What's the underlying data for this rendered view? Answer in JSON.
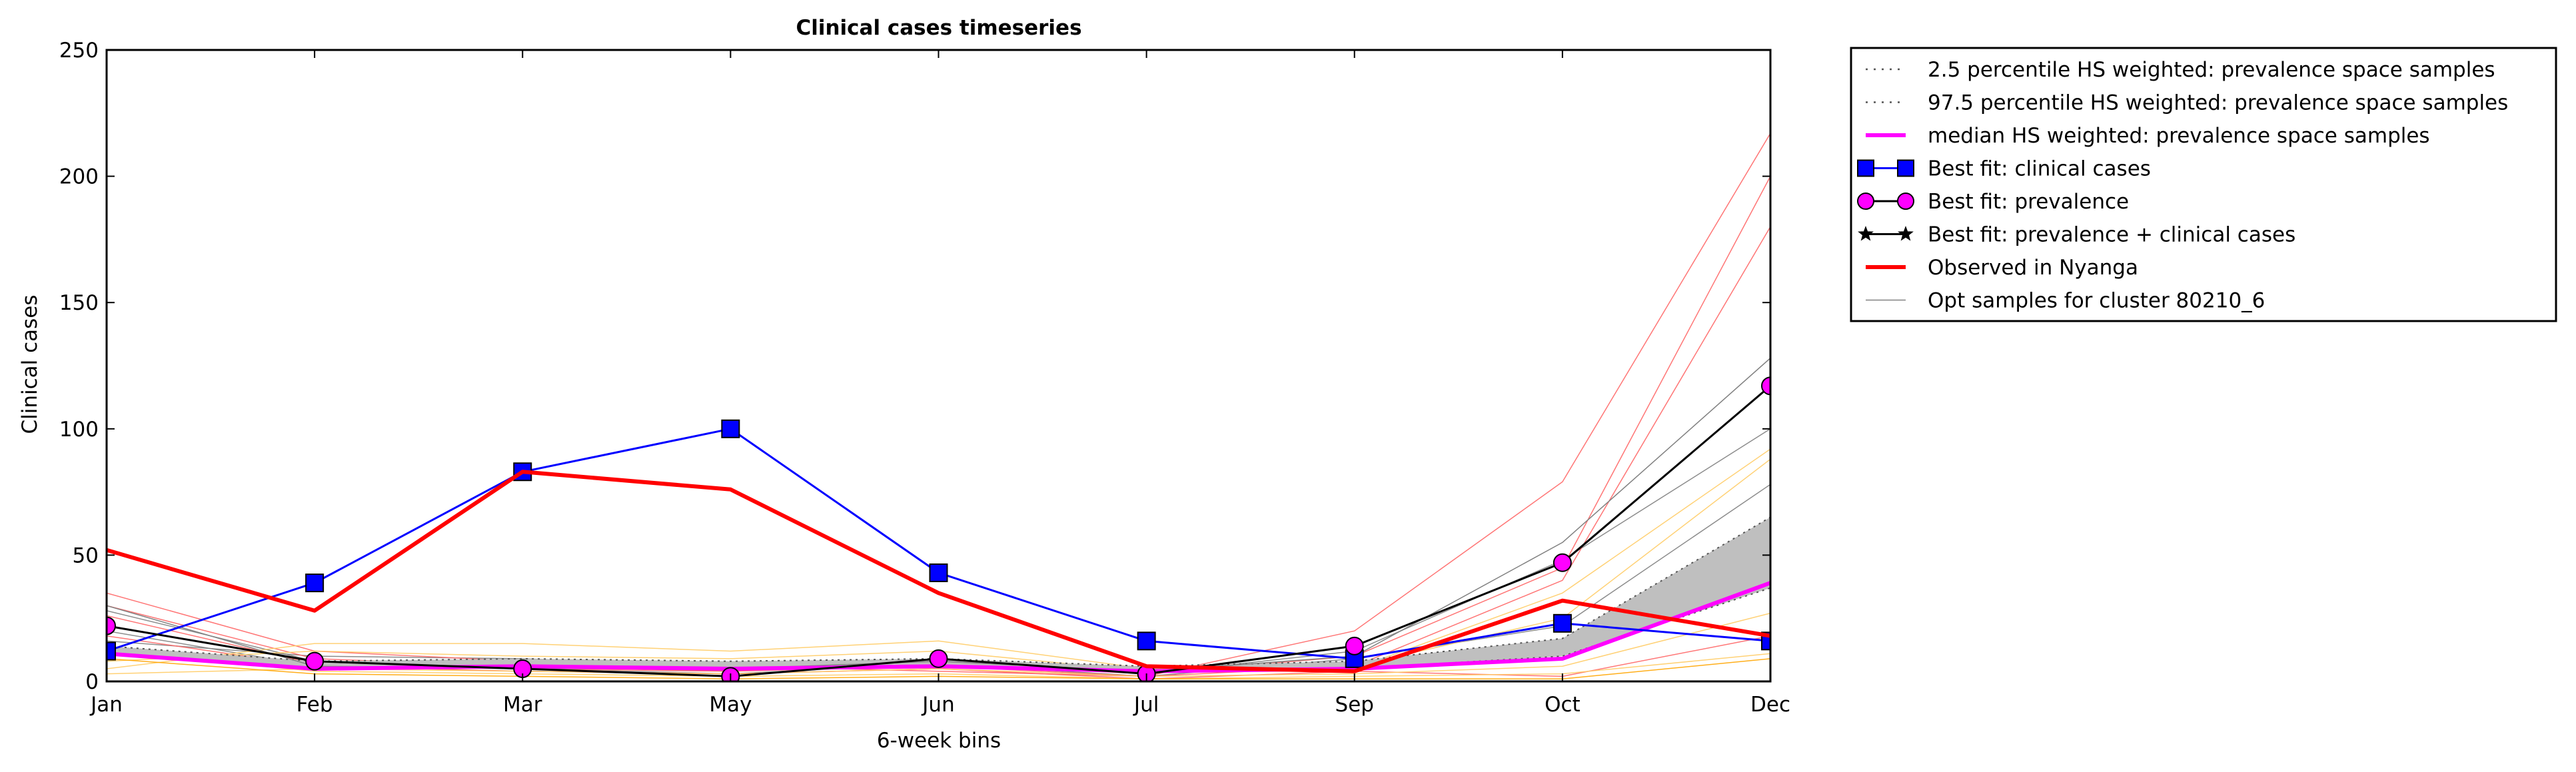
{
  "chart_data": {
    "type": "line",
    "title": "Clinical cases timeseries",
    "xlabel": "6-week bins",
    "ylabel": "Clinical cases",
    "xlim": [
      0,
      8
    ],
    "ylim": [
      0,
      250
    ],
    "grid": false,
    "legend_position": "outside-right-top",
    "x_tick_labels": [
      "Jan",
      "Feb",
      "Mar",
      "May",
      "Jun",
      "Jul",
      "Sep",
      "Oct",
      "Dec"
    ],
    "y_ticks": [
      0,
      50,
      100,
      150,
      200,
      250
    ],
    "band": {
      "lower_name": "2.5 percentile HS weighted: prevalence space samples",
      "upper_name": "97.5 percentile HS weighted: prevalence space samples",
      "lower": [
        11,
        5,
        6,
        5,
        6,
        4,
        5,
        10,
        37
      ],
      "upper": [
        14,
        8,
        9,
        8,
        9,
        6,
        8,
        17,
        65
      ],
      "fill_color": "#bfbfbf",
      "line_color": "#555555"
    },
    "series": [
      {
        "name": "median HS weighted: prevalence space samples",
        "values": [
          11,
          5,
          6,
          5,
          6,
          4,
          5,
          9,
          39
        ],
        "color": "#ff00ff",
        "marker": "none",
        "line": "solid",
        "width": 6
      },
      {
        "name": "Best fit: clinical cases",
        "values": [
          12,
          39,
          83,
          100,
          43,
          16,
          9,
          23,
          16
        ],
        "color": "#0000ff",
        "marker": "square",
        "marker_fill": "#0000ff",
        "line": "solid",
        "width": 3
      },
      {
        "name": "Best fit: prevalence",
        "values": [
          22,
          8,
          5,
          2,
          9,
          3,
          14,
          47,
          117
        ],
        "color": "#000000",
        "marker": "circle",
        "marker_fill": "#ff00ff",
        "line": "none",
        "width": 2
      },
      {
        "name": "Best fit: prevalence + clinical cases",
        "values": [
          22,
          8,
          5,
          2,
          9,
          3,
          14,
          47,
          117
        ],
        "color": "#000000",
        "marker": "star",
        "marker_fill": "#000000",
        "line": "solid",
        "width": 3
      },
      {
        "name": "Observed in Nyanga",
        "values": [
          52,
          28,
          83,
          76,
          35,
          6,
          4,
          32,
          18
        ],
        "color": "#ff0000",
        "marker": "none",
        "line": "solid",
        "width": 6
      },
      {
        "name": "Opt samples for cluster 80210_6",
        "values": [
          30,
          6,
          5,
          5,
          8,
          4,
          10,
          55,
          128
        ],
        "color": "#808080",
        "marker": "none",
        "line": "solid",
        "width": 1.5
      }
    ],
    "background_samples": [
      {
        "color": "#808080",
        "values": [
          28,
          8,
          6,
          4,
          9,
          3,
          12,
          48,
          100
        ]
      },
      {
        "color": "#808080",
        "values": [
          20,
          6,
          5,
          3,
          7,
          2,
          9,
          22,
          78
        ]
      },
      {
        "color": "#808080",
        "values": [
          16,
          10,
          9,
          6,
          8,
          4,
          7,
          14,
          52
        ]
      },
      {
        "color": "#ff6666",
        "values": [
          35,
          12,
          8,
          6,
          4,
          2,
          20,
          79,
          217
        ]
      },
      {
        "color": "#ff6666",
        "values": [
          30,
          9,
          6,
          5,
          7,
          3,
          10,
          45,
          200
        ]
      },
      {
        "color": "#ff6666",
        "values": [
          26,
          7,
          5,
          4,
          6,
          2,
          6,
          40,
          180
        ]
      },
      {
        "color": "#ff6666",
        "values": [
          18,
          6,
          4,
          3,
          5,
          1,
          4,
          2,
          18
        ]
      },
      {
        "color": "#ffcc66",
        "values": [
          5,
          15,
          15,
          12,
          16,
          5,
          5,
          35,
          92
        ]
      },
      {
        "color": "#ffcc66",
        "values": [
          8,
          12,
          10,
          9,
          12,
          4,
          6,
          25,
          88
        ]
      },
      {
        "color": "#ffcc66",
        "values": [
          3,
          5,
          4,
          3,
          5,
          2,
          3,
          6,
          27
        ]
      },
      {
        "color": "#ffcc66",
        "values": [
          12,
          4,
          3,
          2,
          3,
          1,
          2,
          3,
          11
        ]
      },
      {
        "color": "#ffa500",
        "values": [
          9,
          3,
          2,
          1,
          2,
          1,
          1,
          1,
          9
        ]
      }
    ]
  }
}
